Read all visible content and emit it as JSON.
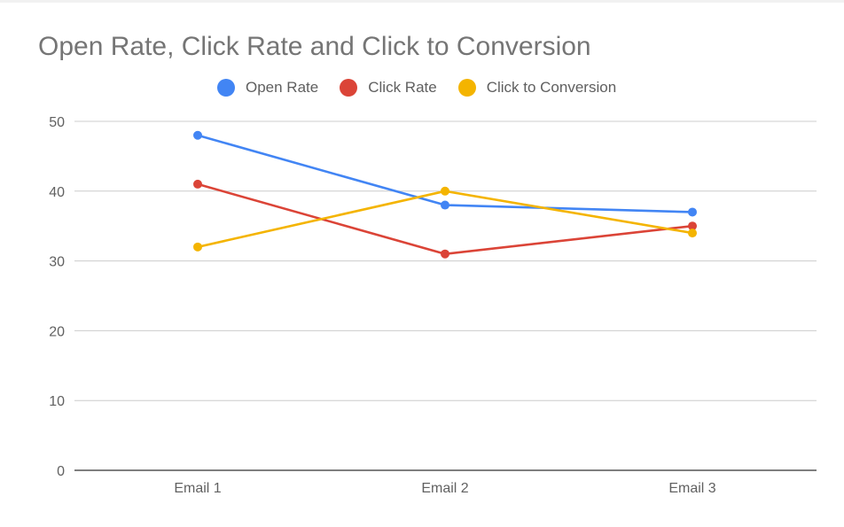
{
  "chart_data": {
    "type": "line",
    "title": "Open Rate, Click Rate and Click to Conversion",
    "categories": [
      "Email 1",
      "Email 2",
      "Email 3"
    ],
    "series": [
      {
        "name": "Open Rate",
        "color": "#4285f4",
        "values": [
          48,
          38,
          37
        ]
      },
      {
        "name": "Click Rate",
        "color": "#db4437",
        "values": [
          41,
          31,
          35
        ]
      },
      {
        "name": "Click to Conversion",
        "color": "#f4b400",
        "values": [
          32,
          40,
          34
        ]
      }
    ],
    "yticks": [
      "0",
      "10",
      "20",
      "30",
      "40",
      "50"
    ],
    "ylim": [
      0,
      50
    ],
    "grid": true,
    "legend_position": "top"
  }
}
